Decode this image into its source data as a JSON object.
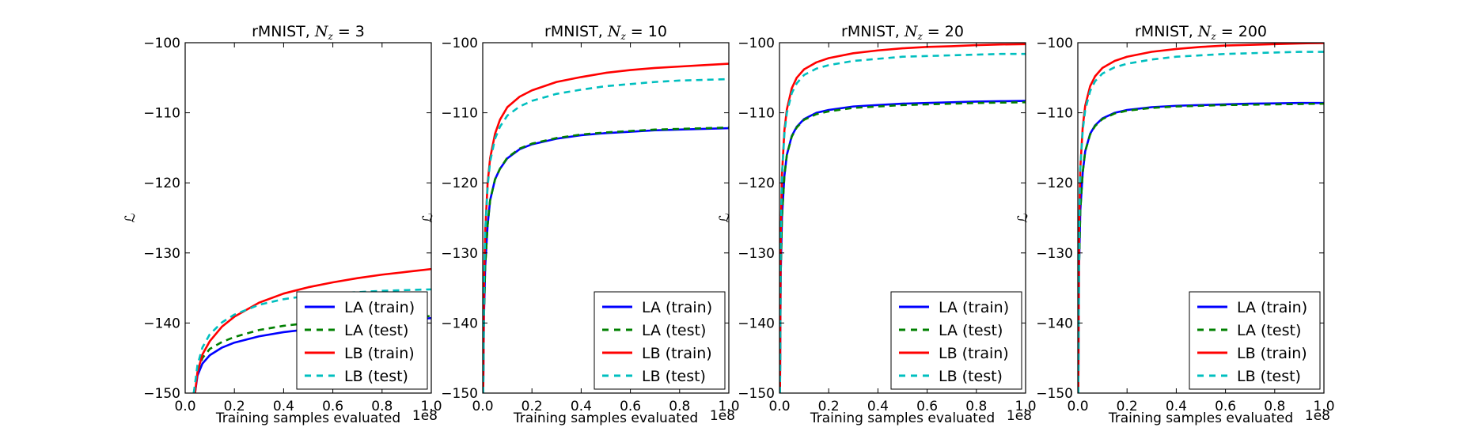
{
  "figure": {
    "xlabel": "Training samples evaluated",
    "ylabel": "ℒ",
    "x_offset_label": "1e8"
  },
  "chart_data": [
    {
      "type": "line",
      "title_prefix": "rMNIST, ",
      "title_suffix": " = 3",
      "xlabel": "Training samples evaluated",
      "ylabel": "ℒ",
      "xlim": [
        0.0,
        1.0
      ],
      "ylim": [
        -150,
        -100
      ],
      "xticks": [
        0.0,
        0.2,
        0.4,
        0.6,
        0.8,
        1.0
      ],
      "xtick_labels": [
        "0.0",
        "0.2",
        "0.4",
        "0.6",
        "0.8",
        "1.0"
      ],
      "yticks": [
        -150,
        -140,
        -130,
        -120,
        -110,
        -100
      ],
      "ytick_labels": [
        "−150",
        "−140",
        "−130",
        "−120",
        "−110",
        "−100"
      ],
      "x_offset_label": "1e8",
      "legend_position": "lower right",
      "grid": false,
      "series": [
        {
          "name": "LA (train)",
          "color": "#0000ff",
          "style": "solid",
          "x": [
            0.04,
            0.05,
            0.07,
            0.1,
            0.15,
            0.2,
            0.3,
            0.4,
            0.5,
            0.6,
            0.7,
            0.8,
            0.9,
            1.0
          ],
          "y": [
            -150,
            -147.5,
            -145.8,
            -144.6,
            -143.5,
            -142.8,
            -141.9,
            -141.3,
            -140.9,
            -140.5,
            -140.2,
            -139.9,
            -139.6,
            -139.3
          ]
        },
        {
          "name": "LA (test)",
          "color": "#008000",
          "style": "dashed",
          "x": [
            0.035,
            0.05,
            0.07,
            0.1,
            0.15,
            0.2,
            0.3,
            0.4,
            0.5,
            0.6,
            0.7,
            0.8,
            0.9,
            1.0
          ],
          "y": [
            -150,
            -147.0,
            -145.0,
            -143.7,
            -142.7,
            -142.0,
            -141.0,
            -140.4,
            -140.0,
            -139.7,
            -139.5,
            -139.3,
            -139.2,
            -139.0
          ]
        },
        {
          "name": "LB (train)",
          "color": "#ff0000",
          "style": "solid",
          "x": [
            0.04,
            0.05,
            0.07,
            0.1,
            0.15,
            0.2,
            0.3,
            0.4,
            0.5,
            0.6,
            0.7,
            0.8,
            0.9,
            1.0
          ],
          "y": [
            -150,
            -147.0,
            -144.5,
            -142.6,
            -140.5,
            -139.1,
            -137.1,
            -135.8,
            -134.9,
            -134.2,
            -133.6,
            -133.1,
            -132.7,
            -132.3
          ]
        },
        {
          "name": "LB (test)",
          "color": "#00bfbf",
          "style": "dashed",
          "x": [
            0.035,
            0.05,
            0.07,
            0.1,
            0.15,
            0.2,
            0.3,
            0.4,
            0.5,
            0.6,
            0.7,
            0.8,
            0.9,
            1.0
          ],
          "y": [
            -150,
            -146.0,
            -143.5,
            -141.6,
            -139.9,
            -138.8,
            -137.4,
            -136.6,
            -136.1,
            -135.8,
            -135.6,
            -135.4,
            -135.3,
            -135.2
          ]
        }
      ]
    },
    {
      "type": "line",
      "title_prefix": "rMNIST, ",
      "title_suffix": " = 10",
      "xlabel": "Training samples evaluated",
      "ylabel": "ℒ",
      "xlim": [
        0.0,
        1.0
      ],
      "ylim": [
        -150,
        -100
      ],
      "xticks": [
        0.0,
        0.2,
        0.4,
        0.6,
        0.8,
        1.0
      ],
      "xtick_labels": [
        "0.0",
        "0.2",
        "0.4",
        "0.6",
        "0.8",
        "1.0"
      ],
      "yticks": [
        -150,
        -140,
        -130,
        -120,
        -110,
        -100
      ],
      "ytick_labels": [
        "−150",
        "−140",
        "−130",
        "−120",
        "−110",
        "−100"
      ],
      "x_offset_label": "1e8",
      "legend_position": "lower right",
      "grid": false,
      "series": [
        {
          "name": "LA (train)",
          "color": "#0000ff",
          "style": "solid",
          "x": [
            0.002,
            0.005,
            0.01,
            0.02,
            0.03,
            0.05,
            0.07,
            0.1,
            0.15,
            0.2,
            0.3,
            0.4,
            0.5,
            0.6,
            0.7,
            0.8,
            0.9,
            1.0
          ],
          "y": [
            -150,
            -139,
            -132,
            -126,
            -122.5,
            -119.5,
            -118,
            -116.5,
            -115.2,
            -114.5,
            -113.7,
            -113.2,
            -112.9,
            -112.7,
            -112.5,
            -112.4,
            -112.3,
            -112.2
          ]
        },
        {
          "name": "LA (test)",
          "color": "#008000",
          "style": "dashed",
          "x": [
            0.002,
            0.005,
            0.01,
            0.02,
            0.03,
            0.05,
            0.07,
            0.1,
            0.15,
            0.2,
            0.3,
            0.4,
            0.5,
            0.6,
            0.7,
            0.8,
            0.9,
            1.0
          ],
          "y": [
            -150,
            -139,
            -132,
            -126,
            -122.5,
            -119.5,
            -118,
            -116.4,
            -115.1,
            -114.4,
            -113.6,
            -113.1,
            -112.8,
            -112.6,
            -112.4,
            -112.3,
            -112.2,
            -112.1
          ]
        },
        {
          "name": "LB (train)",
          "color": "#ff0000",
          "style": "solid",
          "x": [
            0.002,
            0.005,
            0.01,
            0.02,
            0.03,
            0.05,
            0.07,
            0.1,
            0.15,
            0.2,
            0.3,
            0.4,
            0.5,
            0.6,
            0.7,
            0.8,
            0.9,
            1.0
          ],
          "y": [
            -150,
            -135,
            -127,
            -120,
            -116.5,
            -113,
            -111,
            -109.2,
            -107.7,
            -106.8,
            -105.6,
            -104.9,
            -104.3,
            -103.9,
            -103.6,
            -103.4,
            -103.2,
            -103.0
          ]
        },
        {
          "name": "LB (test)",
          "color": "#00bfbf",
          "style": "dashed",
          "x": [
            0.002,
            0.005,
            0.01,
            0.02,
            0.03,
            0.05,
            0.07,
            0.1,
            0.15,
            0.2,
            0.3,
            0.4,
            0.5,
            0.6,
            0.7,
            0.8,
            0.9,
            1.0
          ],
          "y": [
            -150,
            -135,
            -127,
            -120.5,
            -117,
            -113.7,
            -112,
            -110.4,
            -109.1,
            -108.3,
            -107.3,
            -106.7,
            -106.2,
            -105.9,
            -105.6,
            -105.4,
            -105.3,
            -105.2
          ]
        }
      ]
    },
    {
      "type": "line",
      "title_prefix": "rMNIST, ",
      "title_suffix": " = 20",
      "xlabel": "Training samples evaluated",
      "ylabel": "ℒ",
      "xlim": [
        0.0,
        1.0
      ],
      "ylim": [
        -150,
        -100
      ],
      "xticks": [
        0.0,
        0.2,
        0.4,
        0.6,
        0.8,
        1.0
      ],
      "xtick_labels": [
        "0.0",
        "0.2",
        "0.4",
        "0.6",
        "0.8",
        "1.0"
      ],
      "yticks": [
        -150,
        -140,
        -130,
        -120,
        -110,
        -100
      ],
      "ytick_labels": [
        "−150",
        "−140",
        "−130",
        "−120",
        "−110",
        "−100"
      ],
      "x_offset_label": "1e8",
      "legend_position": "lower right",
      "grid": false,
      "series": [
        {
          "name": "LA (train)",
          "color": "#0000ff",
          "style": "solid",
          "x": [
            0.002,
            0.005,
            0.01,
            0.02,
            0.03,
            0.05,
            0.07,
            0.1,
            0.15,
            0.2,
            0.3,
            0.4,
            0.5,
            0.6,
            0.7,
            0.8,
            0.9,
            1.0
          ],
          "y": [
            -150,
            -133,
            -125,
            -119,
            -116,
            -113.3,
            -112,
            -110.9,
            -110,
            -109.6,
            -109.1,
            -108.9,
            -108.7,
            -108.6,
            -108.5,
            -108.4,
            -108.35,
            -108.3
          ]
        },
        {
          "name": "LA (test)",
          "color": "#008000",
          "style": "dashed",
          "x": [
            0.002,
            0.005,
            0.01,
            0.02,
            0.03,
            0.05,
            0.07,
            0.1,
            0.15,
            0.2,
            0.3,
            0.4,
            0.5,
            0.6,
            0.7,
            0.8,
            0.9,
            1.0
          ],
          "y": [
            -150,
            -133,
            -125,
            -119,
            -116,
            -113.4,
            -112.1,
            -111,
            -110.2,
            -109.8,
            -109.3,
            -109.1,
            -108.9,
            -108.8,
            -108.7,
            -108.6,
            -108.55,
            -108.5
          ]
        },
        {
          "name": "LB (train)",
          "color": "#ff0000",
          "style": "solid",
          "x": [
            0.002,
            0.005,
            0.01,
            0.02,
            0.03,
            0.05,
            0.07,
            0.1,
            0.15,
            0.2,
            0.3,
            0.4,
            0.5,
            0.6,
            0.7,
            0.8,
            0.9,
            1.0
          ],
          "y": [
            -150,
            -128,
            -119,
            -112.5,
            -109.5,
            -106.5,
            -105,
            -103.8,
            -102.8,
            -102.2,
            -101.5,
            -101.1,
            -100.8,
            -100.6,
            -100.5,
            -100.35,
            -100.25,
            -100.2
          ]
        },
        {
          "name": "LB (test)",
          "color": "#00bfbf",
          "style": "dashed",
          "x": [
            0.002,
            0.005,
            0.01,
            0.02,
            0.03,
            0.05,
            0.07,
            0.1,
            0.15,
            0.2,
            0.3,
            0.4,
            0.5,
            0.6,
            0.7,
            0.8,
            0.9,
            1.0
          ],
          "y": [
            -150,
            -128,
            -119,
            -113,
            -110,
            -107.2,
            -105.8,
            -104.6,
            -103.7,
            -103.2,
            -102.6,
            -102.3,
            -102.0,
            -101.9,
            -101.8,
            -101.7,
            -101.6,
            -101.6
          ]
        }
      ]
    },
    {
      "type": "line",
      "title_prefix": "rMNIST, ",
      "title_suffix": " = 200",
      "xlabel": "Training samples evaluated",
      "ylabel": "ℒ",
      "xlim": [
        0.0,
        1.0
      ],
      "ylim": [
        -150,
        -100
      ],
      "xticks": [
        0.0,
        0.2,
        0.4,
        0.6,
        0.8,
        1.0
      ],
      "xtick_labels": [
        "0.0",
        "0.2",
        "0.4",
        "0.6",
        "0.8",
        "1.0"
      ],
      "yticks": [
        -150,
        -140,
        -130,
        -120,
        -110,
        -100
      ],
      "ytick_labels": [
        "−150",
        "−140",
        "−130",
        "−120",
        "−110",
        "−100"
      ],
      "x_offset_label": "1e8",
      "legend_position": "lower right",
      "grid": false,
      "series": [
        {
          "name": "LA (train)",
          "color": "#0000ff",
          "style": "solid",
          "x": [
            0.002,
            0.005,
            0.01,
            0.02,
            0.03,
            0.05,
            0.07,
            0.1,
            0.15,
            0.2,
            0.3,
            0.4,
            0.5,
            0.6,
            0.7,
            0.8,
            0.9,
            1.0
          ],
          "y": [
            -150,
            -132,
            -124,
            -118.5,
            -115.5,
            -113,
            -111.8,
            -110.8,
            -110,
            -109.6,
            -109.2,
            -109,
            -108.9,
            -108.8,
            -108.7,
            -108.65,
            -108.6,
            -108.6
          ]
        },
        {
          "name": "LA (test)",
          "color": "#008000",
          "style": "dashed",
          "x": [
            0.002,
            0.005,
            0.01,
            0.02,
            0.03,
            0.05,
            0.07,
            0.1,
            0.15,
            0.2,
            0.3,
            0.4,
            0.5,
            0.6,
            0.7,
            0.8,
            0.9,
            1.0
          ],
          "y": [
            -150,
            -132,
            -124,
            -118.5,
            -115.5,
            -113.1,
            -111.9,
            -110.9,
            -110.1,
            -109.7,
            -109.3,
            -109.1,
            -109,
            -108.9,
            -108.85,
            -108.8,
            -108.75,
            -108.7
          ]
        },
        {
          "name": "LB (train)",
          "color": "#ff0000",
          "style": "solid",
          "x": [
            0.002,
            0.005,
            0.01,
            0.02,
            0.03,
            0.05,
            0.07,
            0.1,
            0.15,
            0.2,
            0.3,
            0.4,
            0.5,
            0.6,
            0.7,
            0.8,
            0.9,
            1.0
          ],
          "y": [
            -150,
            -127,
            -118,
            -112,
            -109,
            -106.2,
            -104.8,
            -103.6,
            -102.6,
            -102,
            -101.3,
            -100.9,
            -100.6,
            -100.4,
            -100.3,
            -100.2,
            -100.1,
            -100.05
          ]
        },
        {
          "name": "LB (test)",
          "color": "#00bfbf",
          "style": "dashed",
          "x": [
            0.002,
            0.005,
            0.01,
            0.02,
            0.03,
            0.05,
            0.07,
            0.1,
            0.15,
            0.2,
            0.3,
            0.4,
            0.5,
            0.6,
            0.7,
            0.8,
            0.9,
            1.0
          ],
          "y": [
            -150,
            -127,
            -118,
            -112.5,
            -109.6,
            -106.9,
            -105.5,
            -104.4,
            -103.5,
            -103,
            -102.4,
            -102.0,
            -101.8,
            -101.6,
            -101.5,
            -101.4,
            -101.3,
            -101.3
          ]
        }
      ]
    }
  ]
}
